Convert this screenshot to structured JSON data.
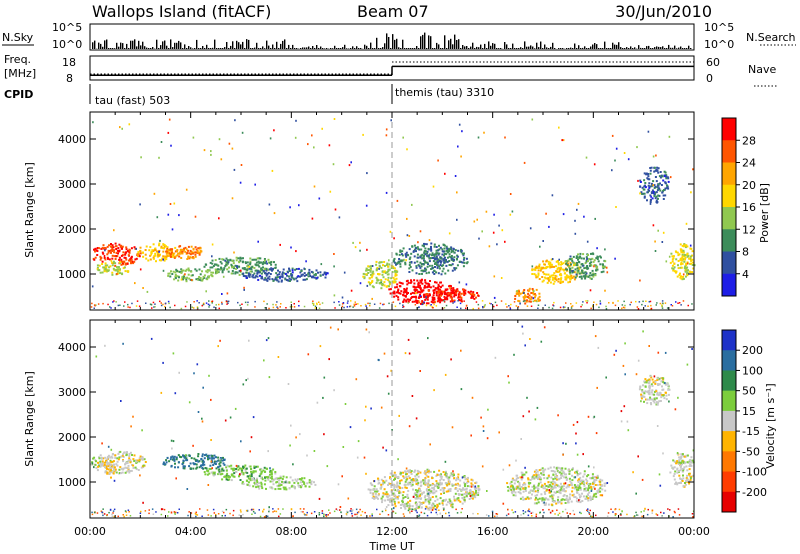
{
  "header": {
    "station": "Wallops Island (fitACF)",
    "beam": "Beam 07",
    "date": "30/Jun/2010"
  },
  "strip": {
    "nsky_label": "N.Sky",
    "nsky_ticks": [
      "10^5",
      "10^0"
    ],
    "nsearch_label": "N.Search",
    "nsearch_ticks": [
      "10^5",
      "10^0"
    ],
    "freq_label_1": "Freq.",
    "freq_label_2": "[MHz]",
    "freq_ticks": [
      "18",
      "8"
    ],
    "nave_label": "Nave",
    "nave_ticks": [
      "60",
      "0"
    ],
    "cpid_label": "CPID",
    "cpid_segments": [
      {
        "name": "tau (fast) 503",
        "start": 0,
        "end": 12
      },
      {
        "name": "themis (tau) 3310",
        "start": 12,
        "end": 24
      }
    ],
    "freq_values": [
      {
        "start": 0,
        "end": 12,
        "mhz": 10.0
      },
      {
        "start": 12,
        "end": 24,
        "mhz": 13.7
      }
    ],
    "nave_values": [
      {
        "start": 0,
        "end": 12,
        "nave": 15
      },
      {
        "start": 12,
        "end": 24,
        "nave": 45
      }
    ]
  },
  "chart_data": [
    {
      "type": "heatmap",
      "title": "",
      "xlabel": "Time UT",
      "ylabel": "Slant Range [km]",
      "xlim": [
        0,
        24
      ],
      "ylim": [
        200,
        4600
      ],
      "x_ticks": [
        "00:00",
        "04:00",
        "08:00",
        "12:00",
        "16:00",
        "20:00",
        "00:00"
      ],
      "y_ticks": [
        "1000",
        "2000",
        "3000",
        "4000"
      ],
      "colorbar": {
        "label": "Power [dB]",
        "ticks": [
          "28",
          "24",
          "20",
          "16",
          "12",
          "8",
          "4"
        ],
        "range": [
          0,
          30
        ],
        "colors": [
          "#ff0000",
          "#ff5500",
          "#ffa500",
          "#ffd700",
          "#90c850",
          "#3c8c5a",
          "#3050a0",
          "#1e1ee6"
        ]
      },
      "regions": [
        {
          "t0": 0.0,
          "t1": 2.0,
          "r0": 1200,
          "r1": 1700,
          "value": 26
        },
        {
          "t0": 0.2,
          "t1": 1.6,
          "r0": 1000,
          "r1": 1300,
          "value": 14
        },
        {
          "t0": 1.8,
          "t1": 3.5,
          "r0": 1300,
          "r1": 1700,
          "value": 18
        },
        {
          "t0": 2.8,
          "t1": 4.6,
          "r0": 1350,
          "r1": 1650,
          "value": 22
        },
        {
          "t0": 3.0,
          "t1": 5.0,
          "r0": 850,
          "r1": 1150,
          "value": 12
        },
        {
          "t0": 4.5,
          "t1": 7.5,
          "r0": 1000,
          "r1": 1400,
          "value": 10
        },
        {
          "t0": 6.0,
          "t1": 9.5,
          "r0": 850,
          "r1": 1150,
          "value": 6
        },
        {
          "t0": 10.8,
          "t1": 12.2,
          "r0": 700,
          "r1": 1300,
          "value": 14
        },
        {
          "t0": 12.0,
          "t1": 15.0,
          "r0": 1000,
          "r1": 1700,
          "value": 8
        },
        {
          "t0": 11.8,
          "t1": 14.5,
          "r0": 350,
          "r1": 900,
          "value": 29
        },
        {
          "t0": 13.0,
          "t1": 15.5,
          "r0": 400,
          "r1": 700,
          "value": 27
        },
        {
          "t0": 17.5,
          "t1": 19.5,
          "r0": 800,
          "r1": 1350,
          "value": 18
        },
        {
          "t0": 16.8,
          "t1": 18.0,
          "r0": 350,
          "r1": 700,
          "value": 22
        },
        {
          "t0": 18.8,
          "t1": 20.5,
          "r0": 900,
          "r1": 1500,
          "value": 10
        },
        {
          "t0": 23.0,
          "t1": 24.0,
          "r0": 900,
          "r1": 1700,
          "value": 16
        },
        {
          "t0": 21.8,
          "t1": 23.0,
          "r0": 2600,
          "r1": 3400,
          "value": 6
        }
      ]
    },
    {
      "type": "heatmap",
      "title": "",
      "xlabel": "Time UT",
      "ylabel": "Slant Range [km]",
      "xlim": [
        0,
        24
      ],
      "ylim": [
        200,
        4600
      ],
      "x_ticks": [
        "00:00",
        "04:00",
        "08:00",
        "12:00",
        "16:00",
        "20:00",
        "00:00"
      ],
      "y_ticks": [
        "1000",
        "2000",
        "3000",
        "4000"
      ],
      "colorbar": {
        "label": "Velocity [m s⁻¹]",
        "ticks": [
          "200",
          "100",
          "50",
          "15",
          "-15",
          "-50",
          "-100",
          "-200"
        ],
        "range": [
          -250,
          250
        ],
        "colors": [
          "#1e32c8",
          "#2a6ea0",
          "#2e8a4a",
          "#7ccd3c",
          "#c8c8c8",
          "#ffb400",
          "#ff7800",
          "#ff3c00",
          "#e60000"
        ]
      },
      "regions": [
        {
          "t0": 0.0,
          "t1": 2.2,
          "r0": 1200,
          "r1": 1700,
          "value": 0
        },
        {
          "t0": 0.5,
          "t1": 1.0,
          "r0": 1100,
          "r1": 1600,
          "value": -40
        },
        {
          "t0": 2.8,
          "t1": 5.5,
          "r0": 1300,
          "r1": 1650,
          "value": 150
        },
        {
          "t0": 4.5,
          "t1": 7.5,
          "r0": 1050,
          "r1": 1400,
          "value": 60
        },
        {
          "t0": 6.0,
          "t1": 9.0,
          "r0": 850,
          "r1": 1150,
          "value": 40
        },
        {
          "t0": 11.0,
          "t1": 15.5,
          "r0": 400,
          "r1": 1300,
          "value": 0
        },
        {
          "t0": 16.5,
          "t1": 20.5,
          "r0": 500,
          "r1": 1350,
          "value": 5
        },
        {
          "t0": 23.0,
          "t1": 24.0,
          "r0": 900,
          "r1": 1700,
          "value": 0
        },
        {
          "t0": 21.8,
          "t1": 23.0,
          "r0": 2700,
          "r1": 3400,
          "value": 0
        }
      ]
    }
  ]
}
